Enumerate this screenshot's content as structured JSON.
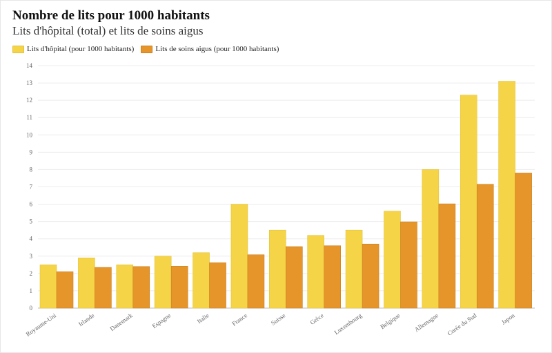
{
  "chart_data": {
    "type": "bar",
    "title": "Nombre de lits pour 1000 habitants",
    "subtitle": "Lits d'hôpital (total) et lits de soins aigus",
    "categories": [
      "Royaume-Uni",
      "Irlande",
      "Danemark",
      "Espagne",
      "Italie",
      "France",
      "Suisse",
      "Grèce",
      "Luxembourg",
      "Belgique",
      "Allemagne",
      "Corée du Sud",
      "Japon"
    ],
    "series": [
      {
        "name": "Lits d'hôpital (pour 1000 habitants)",
        "color": "#f5d547",
        "values": [
          2.5,
          2.9,
          2.5,
          3.0,
          3.2,
          6.0,
          4.5,
          4.2,
          4.5,
          5.6,
          8.0,
          12.3,
          13.1
        ]
      },
      {
        "name": "Lits de soins aigus (pour 1000 habitants)",
        "color": "#e6952a",
        "values": [
          2.1,
          2.35,
          2.4,
          2.42,
          2.62,
          3.08,
          3.55,
          3.6,
          3.7,
          4.98,
          6.02,
          7.15,
          7.8
        ]
      }
    ],
    "y_ticks": [
      "0",
      "1",
      "2",
      "3",
      "4",
      "5",
      "6",
      "7",
      "8",
      "9",
      "10",
      "11",
      "12",
      "13",
      "14"
    ],
    "ylim": [
      0,
      14
    ],
    "grid": true,
    "legend": "top-left"
  }
}
